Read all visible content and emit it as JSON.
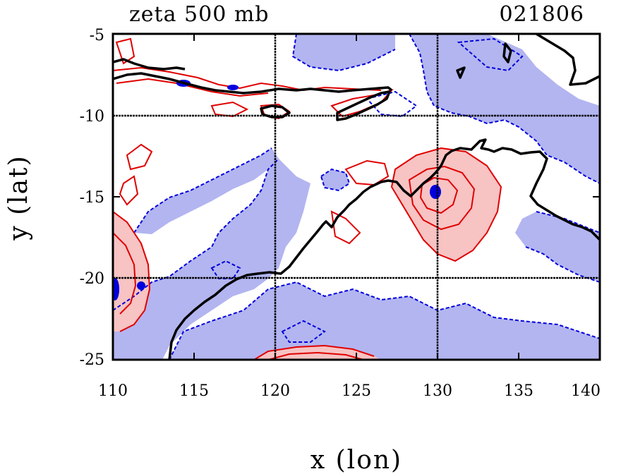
{
  "title": "zeta 500 mb",
  "timestamp": "021806",
  "xlabel": "x (lon)",
  "ylabel": "y (lat)",
  "x_ticks": [
    "110",
    "115",
    "120",
    "125",
    "130",
    "135",
    "140"
  ],
  "y_ticks": [
    "-5",
    "-10",
    "-15",
    "-20",
    "-25"
  ],
  "map": {
    "lon_range": [
      110,
      140
    ],
    "lat_range": [
      -25,
      -5
    ],
    "grid_lons": [
      120,
      130
    ],
    "grid_lats": [
      -10,
      -20
    ],
    "colors": {
      "negative_fill": "#b3b5f0",
      "negative_contour": "#0000dd",
      "positive_fill": "#f7c3c3",
      "positive_contour": "#e00000",
      "coastline": "#000000",
      "grid": "#000000"
    }
  }
}
